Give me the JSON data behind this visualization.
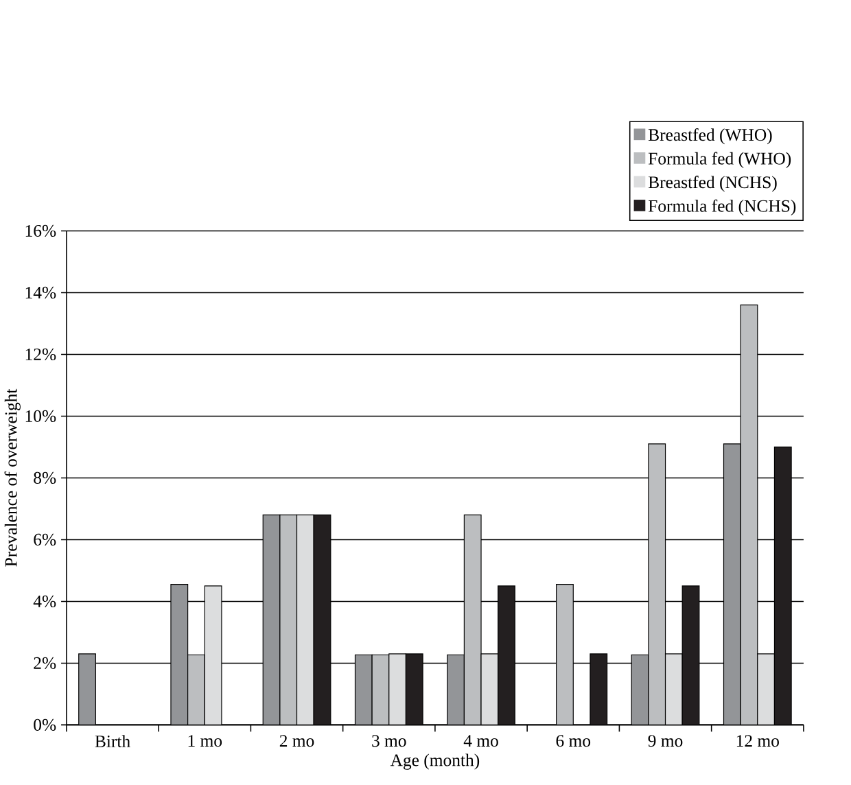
{
  "chart_data": {
    "type": "bar",
    "xlabel": "Age (month)",
    "ylabel": "Prevalence of overweight",
    "categories": [
      "Birth",
      "1 mo",
      "2 mo",
      "3 mo",
      "4 mo",
      "6 mo",
      "9 mo",
      "12 mo"
    ],
    "series": [
      {
        "name": "Breastfed (WHO)",
        "color": "#939598",
        "values": [
          2.3,
          4.55,
          6.8,
          2.27,
          2.27,
          null,
          2.27,
          9.1
        ]
      },
      {
        "name": "Formula fed (WHO)",
        "color": "#bcbec0",
        "values": [
          null,
          2.27,
          6.8,
          2.27,
          6.8,
          4.55,
          9.1,
          13.6
        ]
      },
      {
        "name": "Breastfed (NCHS)",
        "color": "#dcddde",
        "values": [
          null,
          4.5,
          6.8,
          2.3,
          2.3,
          null,
          2.3,
          2.3
        ]
      },
      {
        "name": "Formula fed (NCHS)",
        "color": "#231f20",
        "values": [
          null,
          null,
          6.8,
          2.3,
          4.5,
          2.3,
          4.5,
          9.0
        ]
      }
    ],
    "ylim": [
      0,
      16
    ],
    "yticks": [
      {
        "value": 0,
        "label": "0%"
      },
      {
        "value": 2,
        "label": "2%"
      },
      {
        "value": 4,
        "label": "4%"
      },
      {
        "value": 6,
        "label": "6%"
      },
      {
        "value": 8,
        "label": "8%"
      },
      {
        "value": 10,
        "label": "10%"
      },
      {
        "value": 12,
        "label": "12%"
      },
      {
        "value": 14,
        "label": "14%"
      },
      {
        "value": 16,
        "label": "16%"
      }
    ],
    "grid": "y",
    "legend": "top right"
  }
}
